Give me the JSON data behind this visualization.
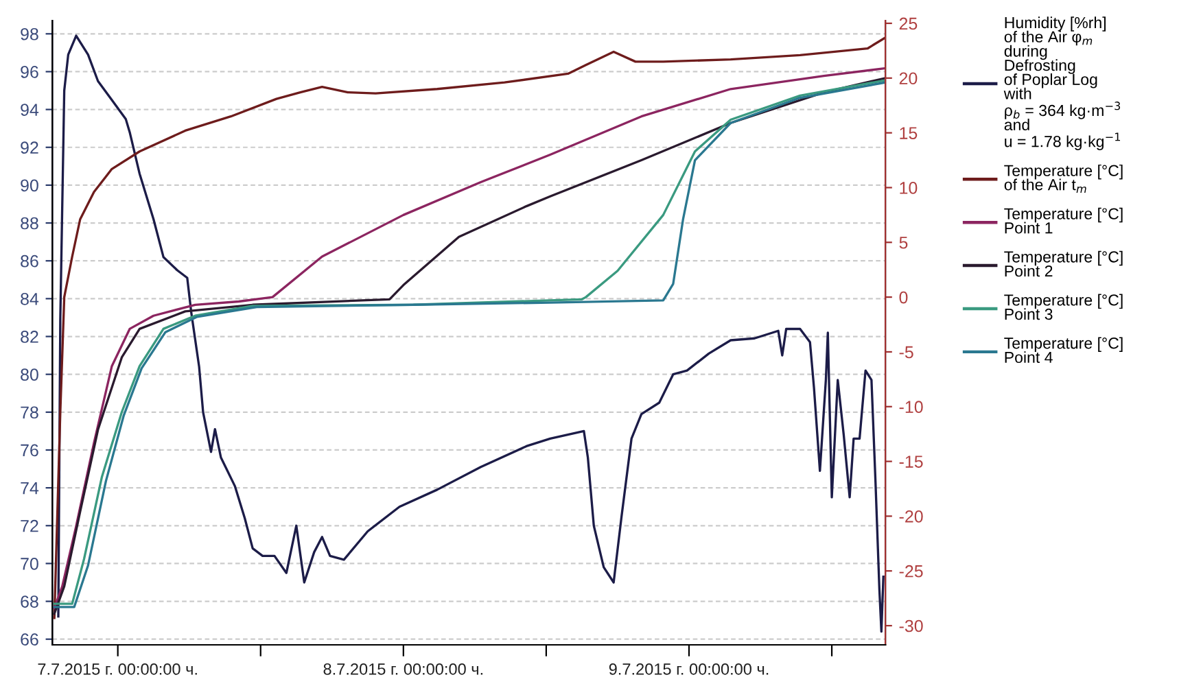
{
  "chart_data": {
    "type": "line",
    "xlim": [
      "2015-07-06T18:30",
      "2015-07-09T16:30"
    ],
    "xticks": [
      {
        "value": "2015-07-07T00:00",
        "label": "7.7.2015 г. 00:00:00 ч."
      },
      {
        "value": "2015-07-07T12:00",
        "label": null
      },
      {
        "value": "2015-07-08T00:00",
        "label": "8.7.2015 г. 00:00:00 ч."
      },
      {
        "value": "2015-07-08T12:00",
        "label": null
      },
      {
        "value": "2015-07-09T00:00",
        "label": "9.7.2015 г. 00:00:00 ч."
      },
      {
        "value": "2015-07-09T12:00",
        "label": null
      }
    ],
    "ylim": [
      65.7,
      98.7
    ],
    "yticks": [
      66,
      68,
      70,
      72,
      74,
      76,
      78,
      80,
      82,
      84,
      86,
      88,
      90,
      92,
      94,
      96,
      98
    ],
    "y2lim": [
      -31.75,
      25.25
    ],
    "y2ticks": [
      -30,
      -25,
      -20,
      -15,
      -10,
      -5,
      0,
      5,
      10,
      15,
      20,
      25
    ],
    "grid": "y",
    "legend": "right",
    "series": [
      {
        "name": "Humidity [%rh]\nof the Air φ$_{m}$\nduring\nDefrosting\nof Poplar Log\nwith\nρ$_{b}$ = 364 kg·m$^{−3}$\nand\nu = 1.78 kg·kg$^{−1}$",
        "color": "#1c1c48",
        "x": [
          "2015-07-06T19:00",
          "2015-07-06T19:10",
          "2015-07-06T19:30",
          "2015-07-06T19:50",
          "2015-07-06T20:30",
          "2015-07-06T21:30",
          "2015-07-06T22:20",
          "2015-07-06T23:30",
          "2015-07-07T00:40",
          "2015-07-07T01:00",
          "2015-07-07T01:50",
          "2015-07-07T03:00",
          "2015-07-07T03:50",
          "2015-07-07T05:00",
          "2015-07-07T05:50",
          "2015-07-07T06:10",
          "2015-07-07T06:50",
          "2015-07-07T07:10",
          "2015-07-07T07:50",
          "2015-07-07T08:10",
          "2015-07-07T08:40",
          "2015-07-07T09:50",
          "2015-07-07T10:40",
          "2015-07-07T11:20",
          "2015-07-07T12:10",
          "2015-07-07T13:10",
          "2015-07-07T14:10",
          "2015-07-07T15:00",
          "2015-07-07T15:40",
          "2015-07-07T16:30",
          "2015-07-07T17:10",
          "2015-07-07T17:50",
          "2015-07-07T19:00",
          "2015-07-07T21:00",
          "2015-07-07T23:40",
          "2015-07-08T02:50",
          "2015-07-08T06:30",
          "2015-07-08T10:20",
          "2015-07-08T12:20",
          "2015-07-08T15:10",
          "2015-07-08T15:30",
          "2015-07-08T16:00",
          "2015-07-08T16:50",
          "2015-07-08T17:40",
          "2015-07-08T18:20",
          "2015-07-08T19:10",
          "2015-07-08T20:00",
          "2015-07-08T21:30",
          "2015-07-08T22:40",
          "2015-07-08T23:50",
          "2015-07-09T01:40",
          "2015-07-09T03:30",
          "2015-07-09T05:30",
          "2015-07-09T07:30",
          "2015-07-09T07:50",
          "2015-07-09T08:10",
          "2015-07-09T09:20",
          "2015-07-09T10:10",
          "2015-07-09T10:30",
          "2015-07-09T11:00",
          "2015-07-09T11:30",
          "2015-07-09T11:40",
          "2015-07-09T12:00",
          "2015-07-09T12:30",
          "2015-07-09T13:00",
          "2015-07-09T13:30",
          "2015-07-09T13:50",
          "2015-07-09T14:20",
          "2015-07-09T14:50",
          "2015-07-09T15:20",
          "2015-07-09T15:40",
          "2015-07-09T16:00",
          "2015-07-09T16:10",
          "2015-07-09T16:20"
        ],
        "values": [
          67.2,
          82.9,
          95.0,
          96.9,
          97.9,
          96.9,
          95.5,
          94.5,
          93.5,
          92.8,
          90.6,
          88.2,
          86.2,
          85.5,
          85.1,
          83.3,
          80.4,
          78.0,
          75.9,
          77.1,
          75.6,
          74.1,
          72.4,
          70.8,
          70.4,
          70.4,
          69.5,
          72.0,
          69.0,
          70.6,
          71.4,
          70.4,
          70.2,
          71.7,
          73.0,
          73.9,
          75.1,
          76.2,
          76.6,
          77.0,
          75.6,
          72.0,
          69.8,
          69.0,
          72.5,
          76.6,
          77.9,
          78.5,
          80.0,
          80.2,
          81.1,
          81.8,
          81.9,
          82.3,
          81.0,
          82.4,
          82.4,
          81.7,
          79.3,
          74.9,
          79.7,
          82.2,
          73.5,
          79.7,
          76.8,
          73.5,
          76.6,
          76.6,
          80.2,
          79.7,
          74.4,
          68.6,
          66.4,
          69.3
        ]
      },
      {
        "name": "Temperature [°C]\nof the Air t$_{m}$",
        "color": "#6e1c1c",
        "axis": "y2",
        "x": [
          "2015-07-06T18:40",
          "2015-07-06T19:10",
          "2015-07-06T19:30",
          "2015-07-06T20:10",
          "2015-07-06T20:50",
          "2015-07-06T22:00",
          "2015-07-06T23:30",
          "2015-07-07T01:50",
          "2015-07-07T05:40",
          "2015-07-07T09:30",
          "2015-07-07T13:20",
          "2015-07-07T15:20",
          "2015-07-07T17:10",
          "2015-07-07T19:20",
          "2015-07-07T21:40",
          "2015-07-08T02:50",
          "2015-07-08T08:30",
          "2015-07-08T13:50",
          "2015-07-08T15:20",
          "2015-07-08T17:40",
          "2015-07-08T19:30",
          "2015-07-08T21:50",
          "2015-07-09T03:30",
          "2015-07-09T09:20",
          "2015-07-09T15:00",
          "2015-07-09T16:30"
        ],
        "values": [
          -29.3,
          -10.5,
          0,
          3.7,
          7.1,
          9.6,
          11.7,
          13.3,
          15.2,
          16.5,
          18.1,
          18.7,
          19.2,
          18.7,
          18.6,
          19.0,
          19.6,
          20.4,
          21.2,
          22.4,
          21.5,
          21.5,
          21.7,
          22.1,
          22.7,
          23.7
        ]
      },
      {
        "name": "Temperature [°C]\nPoint 1",
        "color": "#8c2560",
        "axis": "y2",
        "x": [
          "2015-07-06T18:40",
          "2015-07-06T19:20",
          "2015-07-06T20:30",
          "2015-07-06T22:00",
          "2015-07-06T23:30",
          "2015-07-07T01:00",
          "2015-07-07T03:00",
          "2015-07-07T06:30",
          "2015-07-07T10:10",
          "2015-07-07T13:00",
          "2015-07-07T17:10",
          "2015-07-08T00:00",
          "2015-07-08T06:30",
          "2015-07-08T12:20",
          "2015-07-08T20:00",
          "2015-07-09T03:30",
          "2015-07-09T11:20",
          "2015-07-09T16:30"
        ],
        "values": [
          -28.4,
          -26.4,
          -20.9,
          -13.3,
          -6.3,
          -2.9,
          -1.7,
          -0.7,
          -0.4,
          0,
          3.7,
          7.5,
          10.5,
          13.0,
          16.5,
          19.0,
          20.2,
          20.9
        ]
      },
      {
        "name": "Temperature [°C]\nPoint 2",
        "color": "#2a1a2e",
        "axis": "y2",
        "x": [
          "2015-07-06T18:40",
          "2015-07-06T19:30",
          "2015-07-06T20:50",
          "2015-07-06T22:20",
          "2015-07-07T00:20",
          "2015-07-07T01:50",
          "2015-07-07T05:40",
          "2015-07-07T11:20",
          "2015-07-07T22:50",
          "2015-07-08T00:00",
          "2015-07-08T04:40",
          "2015-07-08T10:20",
          "2015-07-08T12:20",
          "2015-07-08T20:00",
          "2015-07-09T03:30",
          "2015-07-09T11:20",
          "2015-07-09T16:30"
        ],
        "values": [
          -28.9,
          -26.4,
          -19.6,
          -12.1,
          -5.5,
          -2.9,
          -1.3,
          -0.7,
          -0.2,
          1.1,
          5.5,
          8.3,
          9.2,
          12.5,
          15.9,
          18.7,
          20.0
        ]
      },
      {
        "name": "Temperature [°C]\nPoint 3",
        "color": "#3a9a80",
        "axis": "y2",
        "x": [
          "2015-07-06T18:40",
          "2015-07-06T20:10",
          "2015-07-06T21:10",
          "2015-07-06T22:40",
          "2015-07-07T00:20",
          "2015-07-07T01:50",
          "2015-07-07T03:50",
          "2015-07-07T06:30",
          "2015-07-07T11:20",
          "2015-07-08T00:50",
          "2015-07-08T15:00",
          "2015-07-08T15:20",
          "2015-07-08T18:00",
          "2015-07-08T21:50",
          "2015-07-09T00:30",
          "2015-07-09T03:30",
          "2015-07-09T09:20",
          "2015-07-09T16:30"
        ],
        "values": [
          -28.0,
          -28.0,
          -23.9,
          -16.4,
          -10.5,
          -6.3,
          -2.9,
          -1.7,
          -0.8,
          -0.7,
          -0.2,
          0,
          2.4,
          7.5,
          13.3,
          16.2,
          18.4,
          19.8
        ]
      },
      {
        "name": "Temperature [°C]\nPoint 4",
        "color": "#2a7890",
        "axis": "y2",
        "x": [
          "2015-07-06T18:40",
          "2015-07-06T20:20",
          "2015-07-06T21:30",
          "2015-07-06T23:00",
          "2015-07-07T00:30",
          "2015-07-07T02:00",
          "2015-07-07T04:00",
          "2015-07-07T06:40",
          "2015-07-07T11:40",
          "2015-07-08T00:50",
          "2015-07-08T12:20",
          "2015-07-08T21:50",
          "2015-07-08T22:40",
          "2015-07-08T23:30",
          "2015-07-09T00:30",
          "2015-07-09T03:30",
          "2015-07-09T09:20",
          "2015-07-09T16:30"
        ],
        "values": [
          -28.3,
          -28.3,
          -24.5,
          -16.8,
          -10.8,
          -6.5,
          -3.2,
          -1.8,
          -0.9,
          -0.7,
          -0.5,
          -0.3,
          1.2,
          7.1,
          12.5,
          15.9,
          18.2,
          19.6
        ]
      }
    ]
  }
}
